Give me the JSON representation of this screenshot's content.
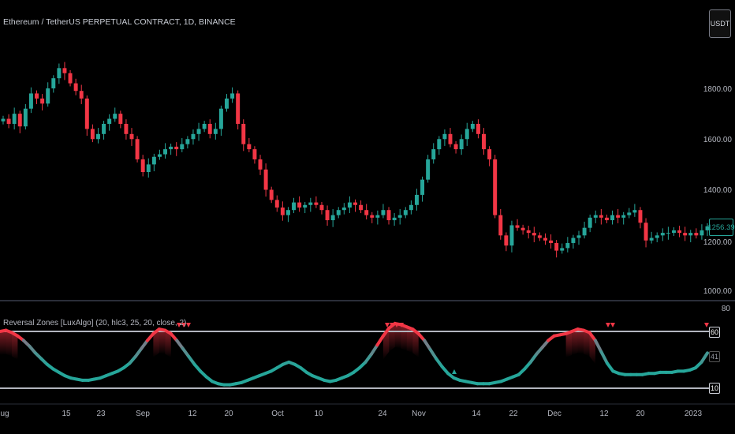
{
  "chart_title": "Ethereum / TetherUS PERPETUAL CONTRACT, 1D, BINANCE",
  "currency_button": "USDT",
  "indicator_title": "Reversal Zones [LuxAlgo] (20, hlc3, 25, 20, close, 2)",
  "price_axis": {
    "ticks": [
      {
        "label": "1800.00",
        "value": 1800
      },
      {
        "label": "1600.00",
        "value": 1600
      },
      {
        "label": "1400.00",
        "value": 1400
      },
      {
        "label": "1000.00",
        "value": 1000
      }
    ],
    "last_price": "1256.39",
    "last_price_hidden_tick": "1200.00"
  },
  "indicator_axis": {
    "top_label": "80",
    "upper_level": "60",
    "current_value": "41",
    "lower_level": "10"
  },
  "date_axis": [
    "ug",
    "15",
    "23",
    "Sep",
    "12",
    "20",
    "Oct",
    "10",
    "24",
    "Nov",
    "14",
    "22",
    "Dec",
    "12",
    "20",
    "2023"
  ],
  "colors": {
    "up": "#26a69a",
    "down": "#f23645",
    "background": "#000000",
    "level_line": "#b2b5be"
  },
  "chart_data": {
    "type": "candlestick",
    "title": "Ethereum / TetherUS PERPETUAL CONTRACT, 1D, BINANCE",
    "y_range": [
      1000,
      1900
    ],
    "close_series": [
      1680,
      1660,
      1700,
      1650,
      1720,
      1780,
      1760,
      1740,
      1800,
      1840,
      1880,
      1860,
      1820,
      1790,
      1760,
      1640,
      1600,
      1620,
      1660,
      1680,
      1700,
      1660,
      1620,
      1600,
      1520,
      1470,
      1500,
      1530,
      1540,
      1560,
      1570,
      1560,
      1580,
      1600,
      1620,
      1640,
      1660,
      1620,
      1640,
      1720,
      1760,
      1780,
      1660,
      1580,
      1560,
      1520,
      1480,
      1400,
      1360,
      1330,
      1300,
      1320,
      1350,
      1330,
      1340,
      1350,
      1340,
      1320,
      1280,
      1300,
      1320,
      1330,
      1350,
      1340,
      1320,
      1300,
      1290,
      1300,
      1320,
      1280,
      1290,
      1300,
      1320,
      1340,
      1380,
      1440,
      1520,
      1560,
      1600,
      1620,
      1580,
      1560,
      1600,
      1640,
      1660,
      1620,
      1560,
      1520,
      1300,
      1220,
      1180,
      1260,
      1250,
      1240,
      1230,
      1220,
      1210,
      1200,
      1190,
      1160,
      1170,
      1190,
      1210,
      1220,
      1250,
      1290,
      1300,
      1290,
      1280,
      1300,
      1290,
      1300,
      1310,
      1320,
      1270,
      1200,
      1210,
      1220,
      1230,
      1230,
      1240,
      1230,
      1220,
      1230,
      1220,
      1240,
      1256
    ],
    "oscillator_series": [
      60,
      61,
      59,
      56,
      52,
      47,
      41,
      36,
      31,
      27,
      24,
      21,
      19,
      18,
      17,
      17,
      18,
      19,
      21,
      23,
      25,
      28,
      32,
      38,
      45,
      52,
      58,
      62,
      61,
      58,
      52,
      45,
      38,
      31,
      25,
      20,
      16,
      14,
      13,
      13,
      14,
      15,
      17,
      19,
      21,
      23,
      25,
      28,
      31,
      33,
      31,
      28,
      24,
      21,
      19,
      17,
      16,
      17,
      19,
      21,
      24,
      28,
      33,
      40,
      48,
      56,
      63,
      67,
      66,
      64,
      62,
      58,
      52,
      44,
      36,
      29,
      23,
      19,
      17,
      16,
      15,
      14,
      14,
      14,
      15,
      16,
      18,
      20,
      22,
      27,
      33,
      40,
      46,
      52,
      56,
      57,
      58,
      60,
      62,
      61,
      59,
      52,
      42,
      32,
      25,
      23,
      22,
      22,
      22,
      22,
      23,
      23,
      24,
      24,
      24,
      25,
      25,
      26,
      28,
      33,
      41
    ],
    "levels": {
      "upper": 60,
      "lower": 10,
      "current": 41,
      "axis_top": 80
    }
  }
}
